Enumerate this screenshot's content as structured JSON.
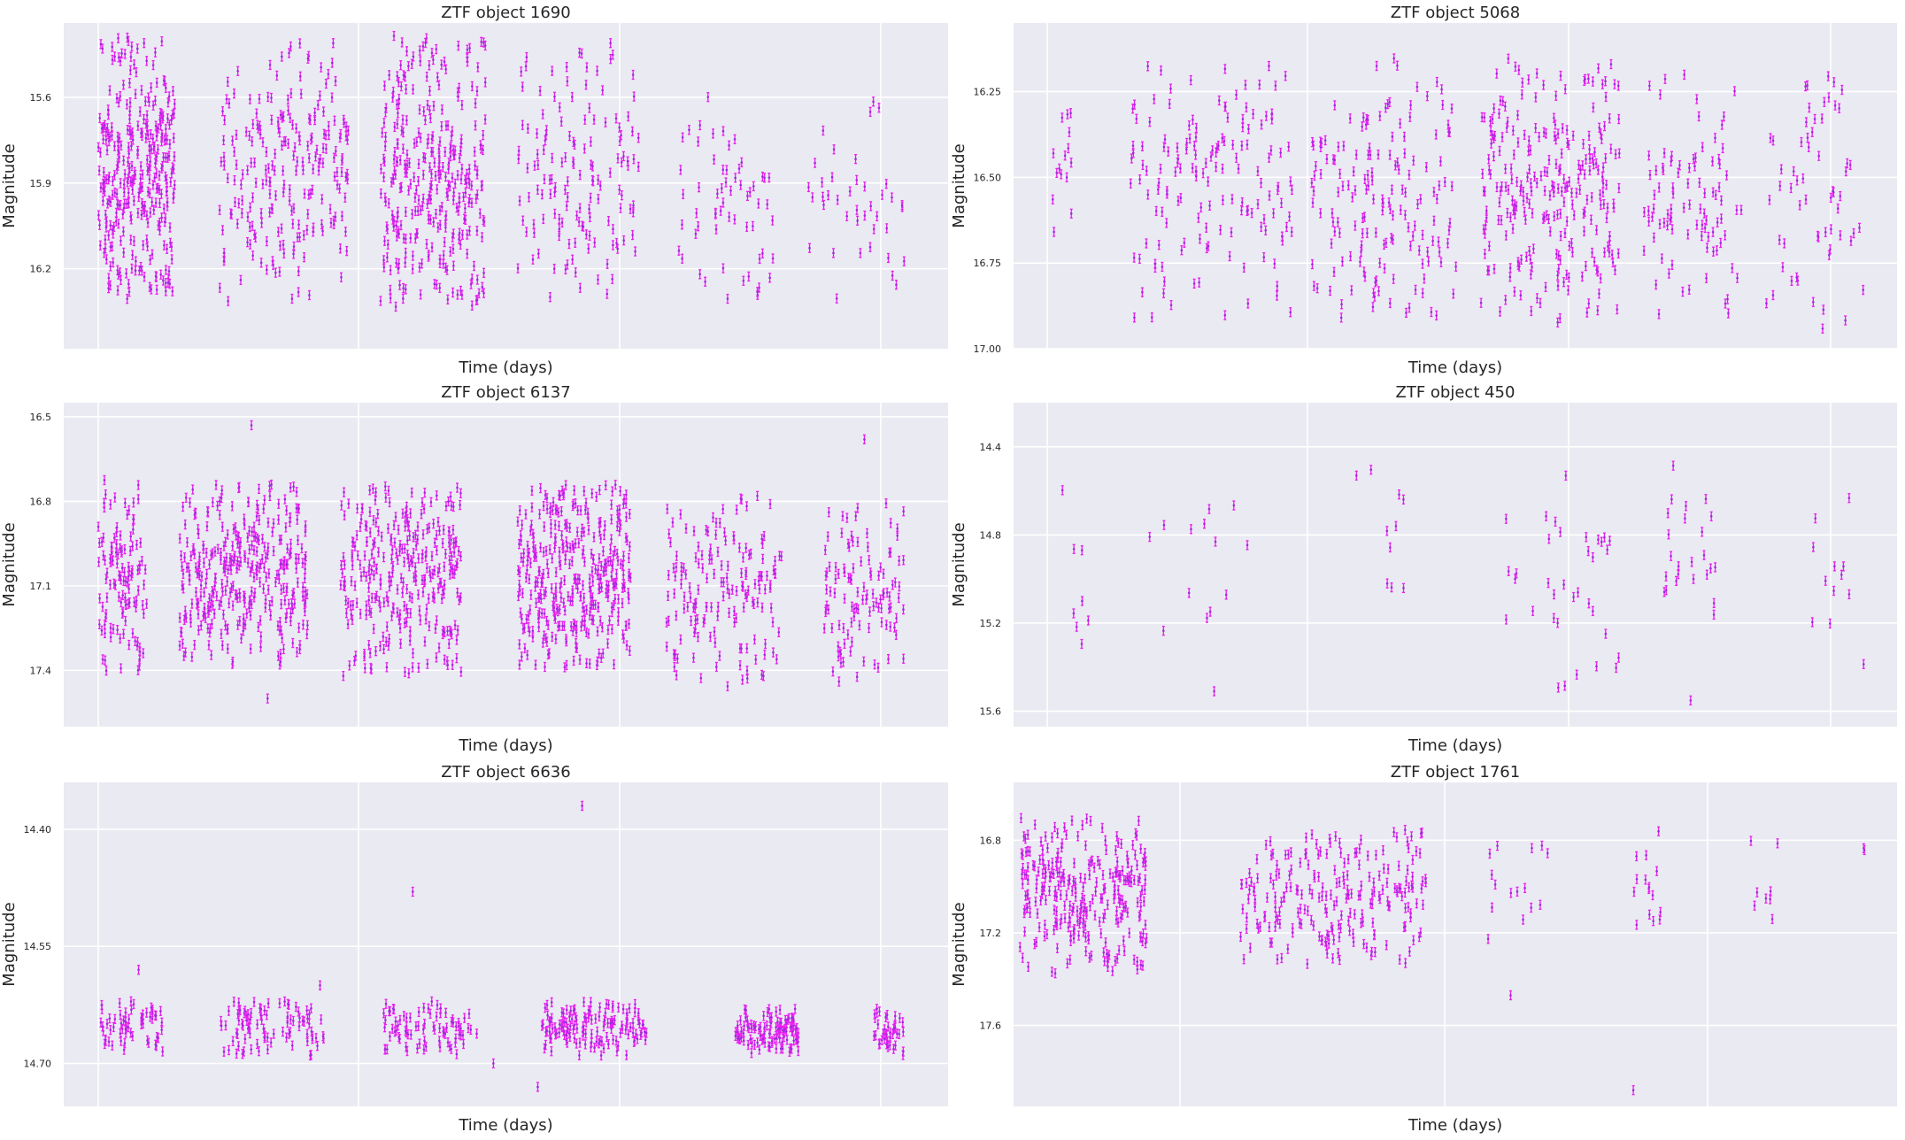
{
  "figure": {
    "marker_color": "#9b2bd8",
    "errorbar_color": "#e81ff0",
    "panel_background": "#eaeaf2",
    "grid_color": "#ffffff"
  },
  "chart_data": [
    {
      "type": "scatter",
      "title": "ZTF object 1690",
      "xlabel": "Time (days)",
      "ylabel": "Magnitude",
      "y_inverted": true,
      "ylim": [
        16.48,
        15.34
      ],
      "yticks": [
        15.6,
        15.9,
        16.2
      ],
      "ytick_labels": [
        "15.6",
        "15.9",
        "16.2"
      ],
      "x_tick_labels_shown": false,
      "grid": true,
      "clusters": [
        {
          "x": [
            0.0,
            0.095
          ],
          "y": [
            15.38,
            16.32
          ],
          "n": 330
        },
        {
          "x": [
            0.15,
            0.31
          ],
          "y": [
            15.4,
            16.32
          ],
          "n": 220
        },
        {
          "x": [
            0.35,
            0.48
          ],
          "y": [
            15.38,
            16.34
          ],
          "n": 320
        },
        {
          "x": [
            0.52,
            0.67
          ],
          "y": [
            15.4,
            16.3
          ],
          "n": 140
        },
        {
          "x": [
            0.72,
            0.84
          ],
          "y": [
            15.5,
            16.32
          ],
          "n": 60
        },
        {
          "x": [
            0.88,
            1.0
          ],
          "y": [
            15.6,
            16.32
          ],
          "n": 40
        }
      ]
    },
    {
      "type": "scatter",
      "title": "ZTF object 5068",
      "xlabel": "Time (days)",
      "ylabel": "Magnitude",
      "y_inverted": true,
      "ylim": [
        17.0,
        16.05
      ],
      "yticks": [
        16.25,
        16.5,
        16.75,
        17.0
      ],
      "ytick_labels": [
        "16.25",
        "16.50",
        "16.75",
        "17.00"
      ],
      "x_tick_labels_shown": false,
      "grid": true,
      "clusters": [
        {
          "x": [
            0.0,
            0.03
          ],
          "y": [
            16.2,
            16.72
          ],
          "n": 15
        },
        {
          "x": [
            0.1,
            0.3
          ],
          "y": [
            16.17,
            16.91
          ],
          "n": 150
        },
        {
          "x": [
            0.32,
            0.5
          ],
          "y": [
            16.15,
            16.92
          ],
          "n": 160
        },
        {
          "x": [
            0.53,
            0.7
          ],
          "y": [
            16.15,
            16.93
          ],
          "n": 260
        },
        {
          "x": [
            0.73,
            0.85
          ],
          "y": [
            16.2,
            16.9
          ],
          "n": 90
        },
        {
          "x": [
            0.88,
            1.0
          ],
          "y": [
            16.2,
            16.95
          ],
          "n": 60
        }
      ]
    },
    {
      "type": "scatter",
      "title": "ZTF object 6137",
      "xlabel": "Time (days)",
      "ylabel": "Magnitude",
      "y_inverted": true,
      "ylim": [
        17.6,
        16.45
      ],
      "yticks": [
        16.5,
        16.8,
        17.1,
        17.4
      ],
      "ytick_labels": [
        "16.5",
        "16.8",
        "17.1",
        "17.4"
      ],
      "x_tick_labels_shown": false,
      "grid": true,
      "clusters": [
        {
          "x": [
            0.0,
            0.06
          ],
          "y": [
            16.72,
            17.43
          ],
          "n": 120
        },
        {
          "x": [
            0.1,
            0.26
          ],
          "y": [
            16.73,
            17.38
          ],
          "n": 340
        },
        {
          "x": [
            0.3,
            0.45
          ],
          "y": [
            16.73,
            17.42
          ],
          "n": 300
        },
        {
          "x": [
            0.52,
            0.66
          ],
          "y": [
            16.74,
            17.39
          ],
          "n": 360
        },
        {
          "x": [
            0.7,
            0.85
          ],
          "y": [
            16.78,
            17.46
          ],
          "n": 160
        },
        {
          "x": [
            0.9,
            1.0
          ],
          "y": [
            16.8,
            17.45
          ],
          "n": 110
        }
      ],
      "outliers": [
        {
          "x": 0.19,
          "y": 16.53
        },
        {
          "x": 0.21,
          "y": 17.5
        },
        {
          "x": 0.95,
          "y": 16.58
        }
      ]
    },
    {
      "type": "scatter",
      "title": "ZTF object 450",
      "xlabel": "Time (days)",
      "ylabel": "Magnitude",
      "y_inverted": true,
      "ylim": [
        15.67,
        14.2
      ],
      "yticks": [
        14.4,
        14.8,
        15.2,
        15.6
      ],
      "ytick_labels": [
        "14.4",
        "14.8",
        "15.2",
        "15.6"
      ],
      "x_tick_labels_shown": false,
      "grid": true,
      "clusters": [
        {
          "x": [
            0.0,
            0.05
          ],
          "y": [
            14.5,
            15.55
          ],
          "n": 8
        },
        {
          "x": [
            0.1,
            0.25
          ],
          "y": [
            14.35,
            15.6
          ],
          "n": 14
        },
        {
          "x": [
            0.37,
            0.45
          ],
          "y": [
            14.5,
            15.5
          ],
          "n": 10
        },
        {
          "x": [
            0.56,
            0.7
          ],
          "y": [
            14.4,
            15.6
          ],
          "n": 35
        },
        {
          "x": [
            0.75,
            0.82
          ],
          "y": [
            14.4,
            15.58
          ],
          "n": 25
        },
        {
          "x": [
            0.93,
            1.0
          ],
          "y": [
            14.4,
            15.6
          ],
          "n": 12
        }
      ]
    },
    {
      "type": "scatter",
      "title": "ZTF object 6636",
      "xlabel": "Time (days)",
      "ylabel": "Magnitude",
      "y_inverted": true,
      "ylim": [
        14.755,
        14.34
      ],
      "yticks": [
        14.4,
        14.55,
        14.7
      ],
      "ytick_labels": [
        "14.40",
        "14.55",
        "14.70"
      ],
      "x_tick_labels_shown": false,
      "grid": true,
      "clusters": [
        {
          "x": [
            0.0,
            0.08
          ],
          "y": [
            14.62,
            14.69
          ],
          "n": 60
        },
        {
          "x": [
            0.15,
            0.28
          ],
          "y": [
            14.62,
            14.69
          ],
          "n": 90
        },
        {
          "x": [
            0.35,
            0.47
          ],
          "y": [
            14.62,
            14.69
          ],
          "n": 80
        },
        {
          "x": [
            0.55,
            0.68
          ],
          "y": [
            14.62,
            14.69
          ],
          "n": 140
        },
        {
          "x": [
            0.79,
            0.87
          ],
          "y": [
            14.63,
            14.69
          ],
          "n": 110
        },
        {
          "x": [
            0.96,
            1.0
          ],
          "y": [
            14.63,
            14.69
          ],
          "n": 40
        }
      ],
      "outliers": [
        {
          "x": 0.05,
          "y": 14.58
        },
        {
          "x": 0.275,
          "y": 14.6
        },
        {
          "x": 0.39,
          "y": 14.48
        },
        {
          "x": 0.6,
          "y": 14.37
        },
        {
          "x": 0.545,
          "y": 14.73
        },
        {
          "x": 0.49,
          "y": 14.7
        }
      ]
    },
    {
      "type": "scatter",
      "title": "ZTF object 1761",
      "xlabel": "Time (days)",
      "ylabel": "Magnitude",
      "y_inverted": true,
      "ylim": [
        17.95,
        16.55
      ],
      "yticks": [
        16.8,
        17.2,
        17.6
      ],
      "ytick_labels": [
        "16.8",
        "17.2",
        "17.6"
      ],
      "x_tick_labels_shown": false,
      "grid": true,
      "clusters": [
        {
          "x": [
            0.0,
            0.15
          ],
          "y": [
            16.7,
            17.38
          ],
          "n": 280
        },
        {
          "x": [
            0.26,
            0.48
          ],
          "y": [
            16.75,
            17.35
          ],
          "n": 220
        },
        {
          "x": [
            0.55,
            0.63
          ],
          "y": [
            16.76,
            17.25
          ],
          "n": 15
        },
        {
          "x": [
            0.72,
            0.76
          ],
          "y": [
            16.75,
            17.3
          ],
          "n": 15
        },
        {
          "x": [
            0.86,
            0.9
          ],
          "y": [
            16.8,
            17.25
          ],
          "n": 8
        },
        {
          "x": [
            0.99,
            1.0
          ],
          "y": [
            16.83,
            16.85
          ],
          "n": 2
        }
      ],
      "outliers": [
        {
          "x": 0.58,
          "y": 17.47
        },
        {
          "x": 0.725,
          "y": 17.88
        }
      ]
    }
  ]
}
